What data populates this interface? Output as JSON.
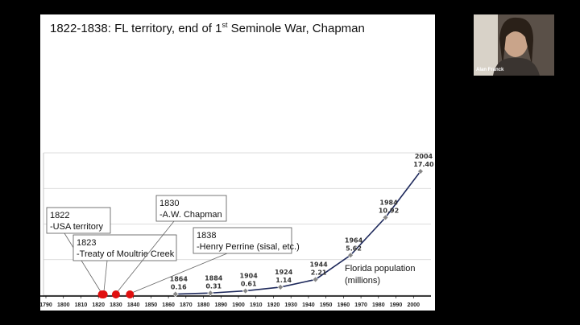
{
  "slide_title": [
    "1822-1838: FL territory, end of 1",
    "st",
    " Seminole War, Chapman"
  ],
  "participant": "Alan Franck",
  "chart_data": {
    "type": "line",
    "x": [
      1864,
      1884,
      1904,
      1924,
      1944,
      1964,
      1984,
      2004
    ],
    "values": [
      0.16,
      0.31,
      0.61,
      1.14,
      2.21,
      5.62,
      10.92,
      17.4
    ],
    "value_labels": [
      "0.16",
      "0.31",
      "0.61",
      "1.14",
      "2.21",
      "5.62",
      "10.92",
      "17.40"
    ],
    "color": "#1f2a5c",
    "xlim": [
      1790,
      2010
    ],
    "xticks": [
      1790,
      1800,
      1810,
      1820,
      1830,
      1840,
      1850,
      1860,
      1870,
      1880,
      1890,
      1900,
      1910,
      1920,
      1930,
      1940,
      1950,
      1960,
      1970,
      1980,
      1990,
      2000
    ],
    "ylim": [
      0,
      20
    ],
    "yticks": [
      0,
      5,
      10,
      15,
      20
    ],
    "grid": true,
    "annotation": [
      "Florida population",
      "(millions)"
    ],
    "events": [
      {
        "year": 1822,
        "text": "-USA territory"
      },
      {
        "year": 1823,
        "text": "-Treaty of Moultrie Creek"
      },
      {
        "year": 1830,
        "text": "-A.W. Chapman"
      },
      {
        "year": 1838,
        "text": "-Henry Perrine (sisal, etc.)"
      }
    ],
    "event_color": "#e01010"
  }
}
